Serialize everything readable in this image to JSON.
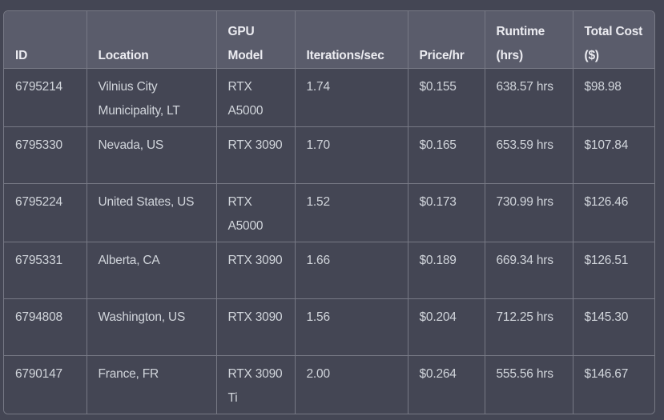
{
  "table": {
    "headers": {
      "id": "ID",
      "location": "Location",
      "gpu": "GPU Model",
      "iterations": "Iterations/sec",
      "price": "Price/hr",
      "runtime": "Runtime (hrs)",
      "cost": "Total Cost ($)"
    },
    "rows": [
      {
        "id": "6795214",
        "location": "Vilnius City Municipality, LT",
        "gpu": "RTX A5000",
        "iterations": "1.74",
        "price": "$0.155",
        "runtime": "638.57 hrs",
        "cost": "$98.98"
      },
      {
        "id": "6795330",
        "location": "Nevada, US",
        "gpu": "RTX 3090",
        "iterations": "1.70",
        "price": "$0.165",
        "runtime": "653.59 hrs",
        "cost": "$107.84"
      },
      {
        "id": "6795224",
        "location": "United States, US",
        "gpu": "RTX A5000",
        "iterations": "1.52",
        "price": "$0.173",
        "runtime": "730.99 hrs",
        "cost": "$126.46"
      },
      {
        "id": "6795331",
        "location": "Alberta, CA",
        "gpu": "RTX 3090",
        "iterations": "1.66",
        "price": "$0.189",
        "runtime": "669.34 hrs",
        "cost": "$126.51"
      },
      {
        "id": "6794808",
        "location": "Washington, US",
        "gpu": "RTX 3090",
        "iterations": "1.56",
        "price": "$0.204",
        "runtime": "712.25 hrs",
        "cost": "$145.30"
      },
      {
        "id": "6790147",
        "location": "France, FR",
        "gpu": "RTX 3090 Ti",
        "iterations": "2.00",
        "price": "$0.264",
        "runtime": "555.56 hrs",
        "cost": "$146.67"
      }
    ]
  }
}
